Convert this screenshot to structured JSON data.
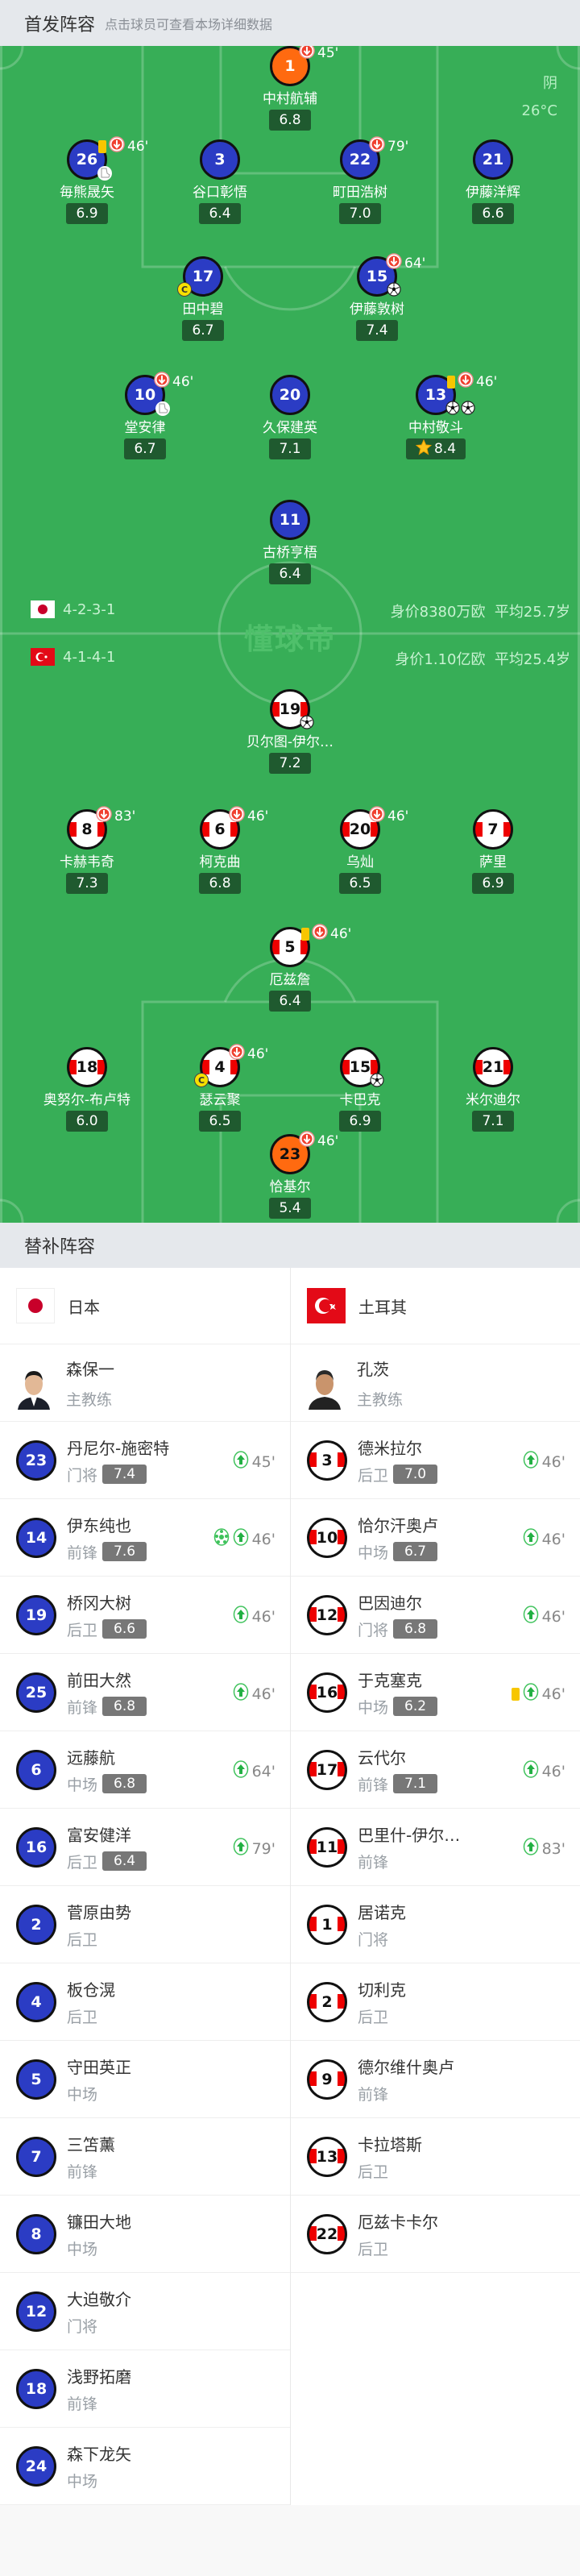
{
  "header": {
    "title": "首发阵容",
    "subtitle": "点击球员可查看本场详细数据"
  },
  "weather": {
    "condition": "阴",
    "temperature": "26°C"
  },
  "watermark": "懂球帝",
  "colors": {
    "pitch": "#37ae57",
    "japan_shirt": "#2b3cc4",
    "goalkeeper_shirt": "#ff6a10",
    "turkey_stripe": "#e00000",
    "yellow_card": "#f7c600",
    "rating_bg": "#1f5a2f"
  },
  "home": {
    "team": "日本",
    "formation": "4-2-3-1",
    "value_text": "身价8380万欧",
    "age_text": "平均25.7岁",
    "flag": "japan-flag",
    "coach": {
      "name": "森保一",
      "role": "主教练"
    },
    "starters": [
      {
        "num": "1",
        "name": "中村航辅",
        "rating": "6.8",
        "gk": true,
        "sub_off": "45'"
      },
      {
        "num": "26",
        "name": "毎熊晟矢",
        "rating": "6.9",
        "yellow": true,
        "sub_off": "46'",
        "assists": 1
      },
      {
        "num": "3",
        "name": "谷口彰悟",
        "rating": "6.4"
      },
      {
        "num": "22",
        "name": "町田浩树",
        "rating": "7.0",
        "sub_off": "79'"
      },
      {
        "num": "21",
        "name": "伊藤洋辉",
        "rating": "6.6"
      },
      {
        "num": "17",
        "name": "田中碧",
        "rating": "6.7",
        "captain": true
      },
      {
        "num": "15",
        "name": "伊藤敦树",
        "rating": "7.4",
        "sub_off": "64'",
        "goals": 1
      },
      {
        "num": "10",
        "name": "堂安律",
        "rating": "6.7",
        "sub_off": "46'",
        "assists": 1
      },
      {
        "num": "20",
        "name": "久保建英",
        "rating": "7.1"
      },
      {
        "num": "13",
        "name": "中村敬斗",
        "rating": "8.4",
        "yellow": true,
        "sub_off": "46'",
        "goals": 2,
        "mvp": true
      },
      {
        "num": "11",
        "name": "古桥亨梧",
        "rating": "6.4"
      }
    ],
    "subs": [
      {
        "num": "23",
        "name": "丹尼尔-施密特",
        "pos": "门将",
        "rating": "7.4",
        "on": "45'"
      },
      {
        "num": "14",
        "name": "伊东纯也",
        "pos": "前锋",
        "rating": "7.6",
        "on": "46'",
        "goals": 1
      },
      {
        "num": "19",
        "name": "桥冈大树",
        "pos": "后卫",
        "rating": "6.6",
        "on": "46'"
      },
      {
        "num": "25",
        "name": "前田大然",
        "pos": "前锋",
        "rating": "6.8",
        "on": "46'"
      },
      {
        "num": "6",
        "name": "远藤航",
        "pos": "中场",
        "rating": "6.8",
        "on": "64'"
      },
      {
        "num": "16",
        "name": "富安健洋",
        "pos": "后卫",
        "rating": "6.4",
        "on": "79'"
      },
      {
        "num": "2",
        "name": "菅原由势",
        "pos": "后卫"
      },
      {
        "num": "4",
        "name": "板仓滉",
        "pos": "后卫"
      },
      {
        "num": "5",
        "name": "守田英正",
        "pos": "中场"
      },
      {
        "num": "7",
        "name": "三笘薰",
        "pos": "前锋"
      },
      {
        "num": "8",
        "name": "镰田大地",
        "pos": "中场"
      },
      {
        "num": "12",
        "name": "大迫敬介",
        "pos": "门将"
      },
      {
        "num": "18",
        "name": "浅野拓磨",
        "pos": "前锋"
      },
      {
        "num": "24",
        "name": "森下龙矢",
        "pos": "中场"
      }
    ]
  },
  "away": {
    "team": "土耳其",
    "formation": "4-1-4-1",
    "value_text": "身价1.10亿欧",
    "age_text": "平均25.4岁",
    "flag": "turkey-flag",
    "coach": {
      "name": "孔茨",
      "role": "主教练"
    },
    "starters": [
      {
        "num": "19",
        "name": "贝尔图-伊尔…",
        "rating": "7.2",
        "goals": 1
      },
      {
        "num": "8",
        "name": "卡赫韦奇",
        "rating": "7.3",
        "sub_off": "83'"
      },
      {
        "num": "6",
        "name": "柯克曲",
        "rating": "6.8",
        "sub_off": "46'"
      },
      {
        "num": "20",
        "name": "乌灿",
        "rating": "6.5",
        "sub_off": "46'"
      },
      {
        "num": "7",
        "name": "萨里",
        "rating": "6.9"
      },
      {
        "num": "5",
        "name": "厄兹詹",
        "rating": "6.4",
        "yellow": true,
        "sub_off": "46'"
      },
      {
        "num": "18",
        "name": "奥努尔-布卢特",
        "rating": "6.0"
      },
      {
        "num": "4",
        "name": "瑟云聚",
        "rating": "6.5",
        "sub_off": "46'",
        "captain": true
      },
      {
        "num": "15",
        "name": "卡巴克",
        "rating": "6.9",
        "goals": 1
      },
      {
        "num": "21",
        "name": "米尔迪尔",
        "rating": "7.1"
      },
      {
        "num": "23",
        "name": "恰基尔",
        "rating": "5.4",
        "gk": true,
        "sub_off": "46'"
      }
    ],
    "subs": [
      {
        "num": "3",
        "name": "德米拉尔",
        "pos": "后卫",
        "rating": "7.0",
        "on": "46'"
      },
      {
        "num": "10",
        "name": "恰尔汗奥卢",
        "pos": "中场",
        "rating": "6.7",
        "on": "46'"
      },
      {
        "num": "12",
        "name": "巴因迪尔",
        "pos": "门将",
        "rating": "6.8",
        "on": "46'"
      },
      {
        "num": "16",
        "name": "于克塞克",
        "pos": "中场",
        "rating": "6.2",
        "on": "46'",
        "yellow": true
      },
      {
        "num": "17",
        "name": "云代尔",
        "pos": "前锋",
        "rating": "7.1",
        "on": "46'"
      },
      {
        "num": "11",
        "name": "巴里什-伊尔…",
        "pos": "前锋",
        "on": "83'"
      },
      {
        "num": "1",
        "name": "居诺克",
        "pos": "门将"
      },
      {
        "num": "2",
        "name": "切利克",
        "pos": "后卫"
      },
      {
        "num": "9",
        "name": "德尔维什奥卢",
        "pos": "前锋"
      },
      {
        "num": "13",
        "name": "卡拉塔斯",
        "pos": "后卫"
      },
      {
        "num": "22",
        "name": "厄兹卡卡尔",
        "pos": "后卫"
      }
    ]
  },
  "bench": {
    "title": "替补阵容"
  }
}
